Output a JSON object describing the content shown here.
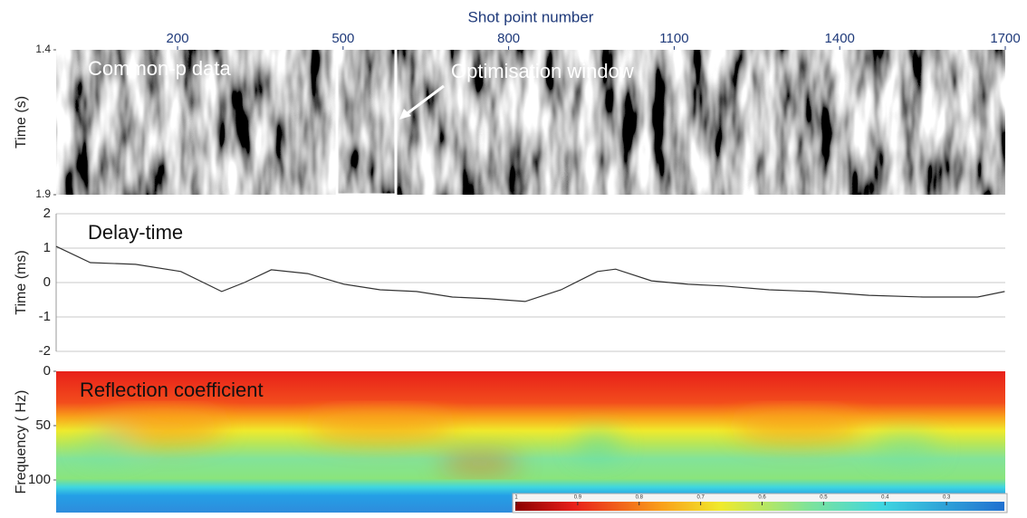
{
  "chart_data": [
    {
      "type": "image",
      "title": "Common-p data",
      "xlabel": "Shot point number",
      "xlim": [
        -20,
        1700
      ],
      "xticks": [
        200,
        500,
        800,
        1100,
        1400,
        1700
      ],
      "ylabel": "Time (s)",
      "ylim": [
        1.4,
        1.9
      ],
      "yticks": [
        1.4,
        1.9
      ],
      "annotation": "Optimisation window"
    },
    {
      "type": "line",
      "title": "Delay-time",
      "ylabel": "Time (ms)",
      "xlim": [
        -20,
        1700
      ],
      "ylim": [
        -2,
        2
      ],
      "yticks": [
        -2,
        -1,
        0,
        1,
        2
      ],
      "grid": true,
      "color": "#333333",
      "x": [
        -20,
        42,
        124,
        206,
        280,
        321,
        370,
        436,
        502,
        567,
        633,
        698,
        764,
        830,
        895,
        961,
        994,
        1059,
        1125,
        1190,
        1272,
        1354,
        1453,
        1551,
        1650,
        1699
      ],
      "values": [
        1.05,
        0.58,
        0.53,
        0.32,
        -0.26,
        0,
        0.37,
        0.26,
        -0.05,
        -0.21,
        -0.26,
        -0.42,
        -0.47,
        -0.55,
        -0.21,
        0.32,
        0.39,
        0.05,
        -0.05,
        -0.1,
        -0.21,
        -0.26,
        -0.37,
        -0.42,
        -0.42,
        -0.26
      ]
    },
    {
      "type": "heatmap",
      "title": "Reflection coefficient",
      "ylabel": "Frequency ( Hz)",
      "ylim": [
        0,
        130
      ],
      "yticks": [
        0,
        50,
        100
      ],
      "colorbar": {
        "clim": [
          1,
          0.2
        ],
        "ticks": [
          1,
          0.9,
          0.8,
          0.7,
          0.6,
          0.5,
          0.4,
          0.3
        ]
      }
    }
  ]
}
